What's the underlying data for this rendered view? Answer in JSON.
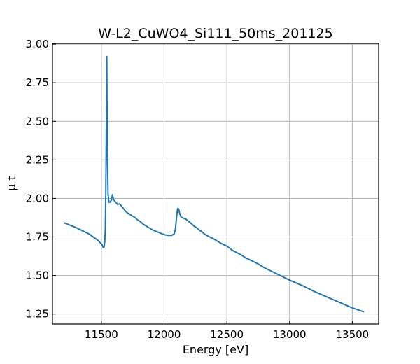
{
  "chart_data": {
    "type": "line",
    "title": "W-L2_CuWO4_Si111_50ms_201125",
    "xlabel": "Energy [eV]",
    "ylabel": "μ t",
    "xlim": [
      11110,
      13710
    ],
    "ylim": [
      1.185,
      3.005
    ],
    "xticks": [
      11500,
      12000,
      12500,
      13000,
      13500
    ],
    "yticks": [
      1.25,
      1.5,
      1.75,
      2.0,
      2.25,
      2.5,
      2.75,
      3.0
    ],
    "xtick_labels": [
      "11500",
      "12000",
      "12500",
      "13000",
      "13500"
    ],
    "ytick_labels": [
      "1.25",
      "1.50",
      "1.75",
      "2.00",
      "2.25",
      "2.50",
      "2.75",
      "3.00"
    ],
    "grid": true,
    "series_color": "#1f77b4",
    "series": [
      {
        "x": [
          11210,
          11300,
          11400,
          11470,
          11505,
          11515,
          11522,
          11527,
          11531,
          11535,
          11540,
          11543,
          11547,
          11553,
          11560,
          11570,
          11580,
          11588,
          11595,
          11603,
          11615,
          11630,
          11645,
          11655,
          11665,
          11680,
          11695,
          11710,
          11730,
          11750,
          11770,
          11790,
          11810,
          11830,
          11850,
          11880,
          11910,
          11940,
          11970,
          12000,
          12030,
          12060,
          12080,
          12090,
          12097,
          12103,
          12108,
          12112,
          12118,
          12125,
          12135,
          12145,
          12160,
          12175,
          12190,
          12205,
          12220,
          12240,
          12260,
          12280,
          12300,
          12320,
          12350,
          12400,
          12450,
          12500,
          12550,
          12600,
          12650,
          12700,
          12750,
          12800,
          12850,
          12900,
          12950,
          13000,
          13100,
          13200,
          13300,
          13400,
          13500,
          13590
        ],
        "y": [
          1.84,
          1.81,
          1.77,
          1.73,
          1.7,
          1.68,
          1.685,
          1.72,
          1.8,
          2.05,
          2.55,
          2.92,
          2.35,
          2.03,
          1.975,
          1.975,
          1.99,
          2.025,
          2.0,
          1.985,
          1.975,
          1.96,
          1.965,
          1.955,
          1.945,
          1.93,
          1.915,
          1.905,
          1.895,
          1.885,
          1.875,
          1.86,
          1.85,
          1.835,
          1.825,
          1.81,
          1.795,
          1.785,
          1.775,
          1.765,
          1.76,
          1.76,
          1.77,
          1.8,
          1.86,
          1.91,
          1.935,
          1.935,
          1.925,
          1.9,
          1.88,
          1.875,
          1.87,
          1.865,
          1.855,
          1.845,
          1.835,
          1.82,
          1.81,
          1.795,
          1.785,
          1.77,
          1.755,
          1.735,
          1.71,
          1.69,
          1.66,
          1.64,
          1.615,
          1.595,
          1.575,
          1.55,
          1.53,
          1.51,
          1.49,
          1.47,
          1.435,
          1.395,
          1.36,
          1.325,
          1.29,
          1.265
        ]
      }
    ]
  }
}
